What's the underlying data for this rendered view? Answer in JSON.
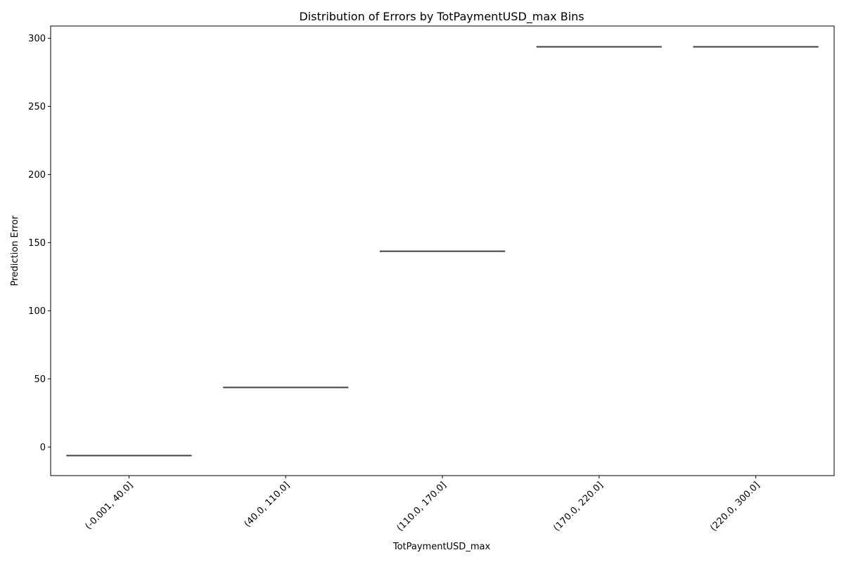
{
  "chart_data": {
    "type": "box",
    "title": "Distribution of Errors by TotPaymentUSD_max Bins",
    "xlabel": "TotPaymentUSD_max",
    "ylabel": "Prediction Error",
    "categories": [
      "(-0.001, 40.0]",
      "(40.0, 110.0]",
      "(110.0, 170.0]",
      "(170.0, 220.0]",
      "(220.0, 300.0]"
    ],
    "values": [
      -6.3,
      43.7,
      143.7,
      293.7,
      293.7
    ],
    "ylim": [
      -21,
      309
    ],
    "yticks": [
      0,
      50,
      100,
      150,
      200,
      250,
      300
    ],
    "grid": false,
    "line_color": "#3f3f3f"
  }
}
